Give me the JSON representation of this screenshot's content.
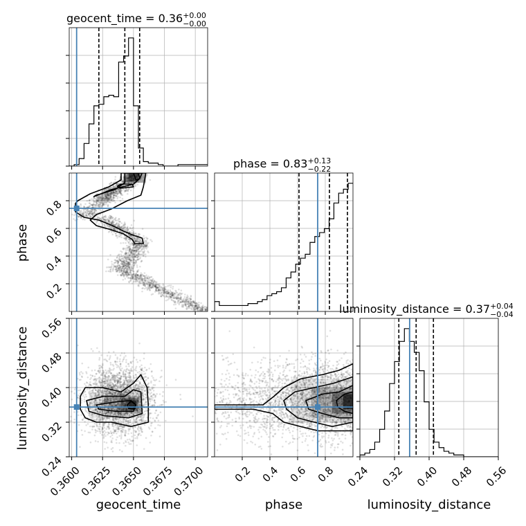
{
  "chart_data": {
    "type": "corner",
    "parameters": [
      "geocent_time",
      "phase",
      "luminosity_distance"
    ],
    "axes": {
      "geocent_time": {
        "label": "geocent_time",
        "range": [
          0.3598,
          0.371
        ],
        "ticks": [
          0.36,
          0.3625,
          0.365,
          0.3675,
          0.37
        ],
        "tick_labels": [
          "0.3600",
          "0.3625",
          "0.3650",
          "0.3675",
          "0.3700"
        ]
      },
      "phase": {
        "label": "phase",
        "range": [
          0.0,
          1.0
        ],
        "ticks": [
          0.2,
          0.4,
          0.6,
          0.8
        ],
        "tick_labels": [
          "0.2",
          "0.4",
          "0.6",
          "0.8"
        ]
      },
      "luminosity_distance": {
        "label": "luminosity_distance",
        "range": [
          0.24,
          0.56
        ],
        "ticks": [
          0.24,
          0.32,
          0.4,
          0.48,
          0.56
        ],
        "tick_labels": [
          "0.24",
          "0.32",
          "0.40",
          "0.48",
          "0.56"
        ]
      }
    },
    "titles": [
      {
        "param": "geocent_time",
        "prefix": "geocent_time = ",
        "median": "0.36",
        "plus": "+0.00",
        "minus": "−0.00"
      },
      {
        "param": "phase",
        "prefix": "phase = ",
        "median": "0.83",
        "plus": "+0.13",
        "minus": "−0.22"
      },
      {
        "param": "luminosity_distance",
        "prefix": "luminosity_distance = ",
        "median": "0.37",
        "plus": "+0.04",
        "minus": "−0.04"
      }
    ],
    "truths": {
      "geocent_time": 0.3604,
      "phase": 0.745,
      "luminosity_distance": 0.355
    },
    "quantiles": {
      "geocent_time": [
        0.3622,
        0.3643,
        0.3655
      ],
      "phase": [
        0.61,
        0.83,
        0.96
      ],
      "luminosity_distance": [
        0.33,
        0.37,
        0.41
      ]
    },
    "histograms": {
      "geocent_time": {
        "edges": [
          0.3598,
          0.3602,
          0.3606,
          0.361,
          0.3614,
          0.3618,
          0.3622,
          0.3626,
          0.363,
          0.3634,
          0.3638,
          0.3642,
          0.3646,
          0.365,
          0.3654,
          0.3658,
          0.3662,
          0.3666,
          0.367,
          0.3674,
          0.3678,
          0.3682,
          0.3686,
          0.369,
          0.3694,
          0.3698,
          0.3702,
          0.3706,
          0.371
        ],
        "counts": [
          0,
          1,
          5,
          15,
          28,
          40,
          41,
          46,
          47,
          46,
          69,
          73,
          85,
          40,
          12,
          3,
          2,
          2,
          1,
          0,
          0,
          0,
          1,
          1,
          1,
          1,
          1,
          1
        ]
      },
      "phase": {
        "edges": [
          0.0,
          0.0345,
          0.069,
          0.1034,
          0.1379,
          0.1724,
          0.2069,
          0.2414,
          0.2759,
          0.3103,
          0.3448,
          0.3793,
          0.4138,
          0.4483,
          0.4828,
          0.5172,
          0.5517,
          0.5862,
          0.6207,
          0.6552,
          0.6897,
          0.7241,
          0.7586,
          0.7931,
          0.8276,
          0.8621,
          0.8966,
          0.931,
          0.9655,
          1.0
        ],
        "counts": [
          5,
          3,
          3,
          3,
          3,
          3,
          3,
          4,
          4,
          5,
          6,
          8,
          9,
          10,
          12,
          17,
          20,
          24,
          27,
          29,
          35,
          38,
          40,
          42,
          47,
          55,
          60,
          62,
          65
        ]
      },
      "luminosity_distance": {
        "edges": [
          0.24,
          0.2514,
          0.2629,
          0.2743,
          0.2857,
          0.2971,
          0.3086,
          0.32,
          0.3314,
          0.3429,
          0.3543,
          0.3657,
          0.3771,
          0.3886,
          0.4,
          0.4114,
          0.4229,
          0.4343,
          0.4457,
          0.4571,
          0.4686,
          0.48,
          0.4914,
          0.5029,
          0.5143,
          0.5257,
          0.5371,
          0.5486,
          0.56
        ],
        "counts": [
          1,
          2,
          4,
          8,
          15,
          25,
          40,
          52,
          63,
          70,
          63,
          57,
          47,
          30,
          15,
          8,
          5,
          3,
          2,
          1,
          1,
          0,
          0,
          0,
          0,
          0,
          0,
          0
        ]
      }
    },
    "contours_2d": {
      "phase_vs_geocent_time": [
        [
          [
            0.3603,
            0.78
          ],
          [
            0.3603,
            0.72
          ],
          [
            0.361,
            0.68
          ],
          [
            0.3622,
            0.66
          ],
          [
            0.3633,
            0.62
          ],
          [
            0.3642,
            0.58
          ],
          [
            0.365,
            0.55
          ],
          [
            0.3657,
            0.53
          ],
          [
            0.3658,
            0.49
          ],
          [
            0.3651,
            0.49
          ],
          [
            0.3649,
            0.52
          ],
          [
            0.3642,
            0.56
          ],
          [
            0.3632,
            0.59
          ],
          [
            0.362,
            0.62
          ],
          [
            0.3615,
            0.66
          ],
          [
            0.362,
            0.7
          ],
          [
            0.3632,
            0.74
          ],
          [
            0.3645,
            0.8
          ],
          [
            0.3656,
            0.84
          ],
          [
            0.3658,
            0.9
          ],
          [
            0.366,
            1.0
          ],
          [
            0.364,
            1.0
          ],
          [
            0.364,
            0.95
          ],
          [
            0.363,
            0.9
          ],
          [
            0.3615,
            0.85
          ],
          [
            0.3605,
            0.8
          ]
        ],
        [
          [
            0.3618,
            0.83
          ],
          [
            0.3632,
            0.88
          ],
          [
            0.365,
            0.92
          ],
          [
            0.3655,
            0.96
          ],
          [
            0.3657,
            1.0
          ],
          [
            0.3643,
            1.0
          ],
          [
            0.3643,
            0.93
          ],
          [
            0.3635,
            0.88
          ],
          [
            0.362,
            0.84
          ]
        ],
        [
          [
            0.3639,
            0.89
          ],
          [
            0.365,
            0.9
          ],
          [
            0.3649,
            0.92
          ],
          [
            0.364,
            0.92
          ],
          [
            0.3637,
            0.905
          ]
        ],
        [
          [
            0.365,
            1.0
          ],
          [
            0.3652,
            0.95
          ],
          [
            0.3655,
            0.96
          ],
          [
            0.3654,
            1.0
          ]
        ]
      ],
      "lum_vs_geocent_time": [
        [
          [
            0.3607,
            0.38
          ],
          [
            0.3611,
            0.4
          ],
          [
            0.3625,
            0.4
          ],
          [
            0.364,
            0.39
          ],
          [
            0.365,
            0.41
          ],
          [
            0.3656,
            0.43
          ],
          [
            0.3661,
            0.4
          ],
          [
            0.3662,
            0.36
          ],
          [
            0.3662,
            0.32
          ],
          [
            0.3648,
            0.31
          ],
          [
            0.3632,
            0.32
          ],
          [
            0.362,
            0.32
          ],
          [
            0.3611,
            0.33
          ],
          [
            0.3607,
            0.35
          ]
        ],
        [
          [
            0.3612,
            0.37
          ],
          [
            0.3626,
            0.38
          ],
          [
            0.3643,
            0.38
          ],
          [
            0.365,
            0.395
          ],
          [
            0.3656,
            0.39
          ],
          [
            0.3657,
            0.34
          ],
          [
            0.3646,
            0.33
          ],
          [
            0.3626,
            0.335
          ],
          [
            0.3614,
            0.345
          ]
        ],
        [
          [
            0.362,
            0.36
          ],
          [
            0.3636,
            0.367
          ],
          [
            0.3648,
            0.37
          ],
          [
            0.3652,
            0.36
          ],
          [
            0.365,
            0.345
          ],
          [
            0.3636,
            0.345
          ],
          [
            0.3622,
            0.35
          ]
        ],
        [
          [
            0.3645,
            0.36
          ],
          [
            0.3648,
            0.368
          ],
          [
            0.3652,
            0.36
          ],
          [
            0.365,
            0.35
          ],
          [
            0.3646,
            0.352
          ]
        ]
      ],
      "lum_vs_phase": [
        [
          [
            0.0,
            0.36
          ],
          [
            0.1,
            0.36
          ],
          [
            0.35,
            0.36
          ],
          [
            0.43,
            0.38
          ],
          [
            0.5,
            0.4
          ],
          [
            0.62,
            0.42
          ],
          [
            0.78,
            0.43
          ],
          [
            0.9,
            0.44
          ],
          [
            1.0,
            0.455
          ],
          [
            1.0,
            0.3
          ],
          [
            0.88,
            0.3
          ],
          [
            0.75,
            0.3
          ],
          [
            0.62,
            0.31
          ],
          [
            0.5,
            0.32
          ],
          [
            0.42,
            0.34
          ],
          [
            0.28,
            0.35
          ],
          [
            0.0,
            0.35
          ]
        ],
        [
          [
            0.5,
            0.37
          ],
          [
            0.58,
            0.39
          ],
          [
            0.72,
            0.4
          ],
          [
            0.86,
            0.41
          ],
          [
            1.0,
            0.425
          ],
          [
            1.0,
            0.32
          ],
          [
            0.85,
            0.31
          ],
          [
            0.72,
            0.32
          ],
          [
            0.6,
            0.33
          ],
          [
            0.52,
            0.35
          ]
        ],
        [
          [
            0.66,
            0.37
          ],
          [
            0.78,
            0.385
          ],
          [
            0.9,
            0.39
          ],
          [
            1.0,
            0.405
          ],
          [
            1.0,
            0.33
          ],
          [
            0.9,
            0.33
          ],
          [
            0.78,
            0.34
          ],
          [
            0.68,
            0.35
          ]
        ],
        [
          [
            0.88,
            0.37
          ],
          [
            0.94,
            0.385
          ],
          [
            1.0,
            0.39
          ],
          [
            1.0,
            0.34
          ],
          [
            0.94,
            0.345
          ],
          [
            0.89,
            0.355
          ]
        ]
      ]
    }
  }
}
